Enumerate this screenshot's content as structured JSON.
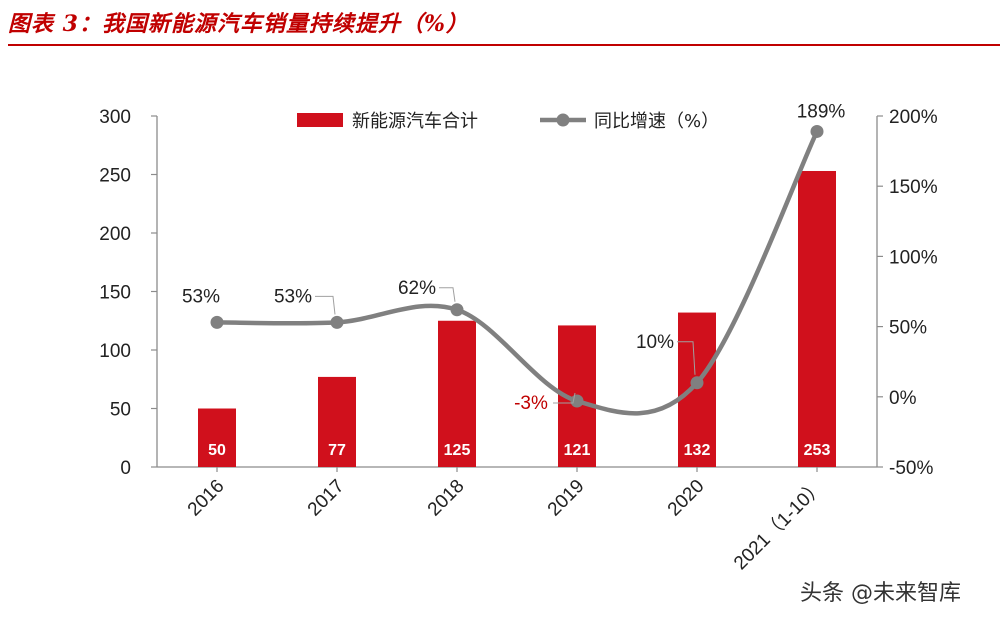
{
  "figure": {
    "title": "图表 3：我国新能源汽车销量持续提升（%）"
  },
  "chart_data": {
    "type": "bar",
    "categories": [
      "2016",
      "2017",
      "2018",
      "2019",
      "2020",
      "2021（1-10）"
    ],
    "series": [
      {
        "name": "新能源汽车合计",
        "kind": "bar",
        "axis": "left",
        "color": "#d0101c",
        "values": [
          50,
          77,
          125,
          121,
          132,
          253
        ],
        "labels": [
          "50",
          "77",
          "125",
          "121",
          "132",
          "253"
        ]
      },
      {
        "name": "同比增速（%）",
        "kind": "line",
        "axis": "right",
        "color": "#808080",
        "values": [
          53,
          53,
          62,
          -3,
          10,
          189
        ],
        "labels": [
          "53%",
          "53%",
          "62%",
          "-3%",
          "10%",
          "189%"
        ]
      }
    ],
    "y_left": {
      "min": 0,
      "max": 300,
      "ticks": [
        "0",
        "50",
        "100",
        "150",
        "200",
        "250",
        "300"
      ]
    },
    "y_right": {
      "min": -50,
      "max": 200,
      "ticks": [
        "-50%",
        "0%",
        "50%",
        "100%",
        "150%",
        "200%"
      ]
    },
    "legend_position": "top",
    "grid": false,
    "negative_label_color": "#c00000"
  },
  "watermark": {
    "text": "头条 @未来智库"
  }
}
